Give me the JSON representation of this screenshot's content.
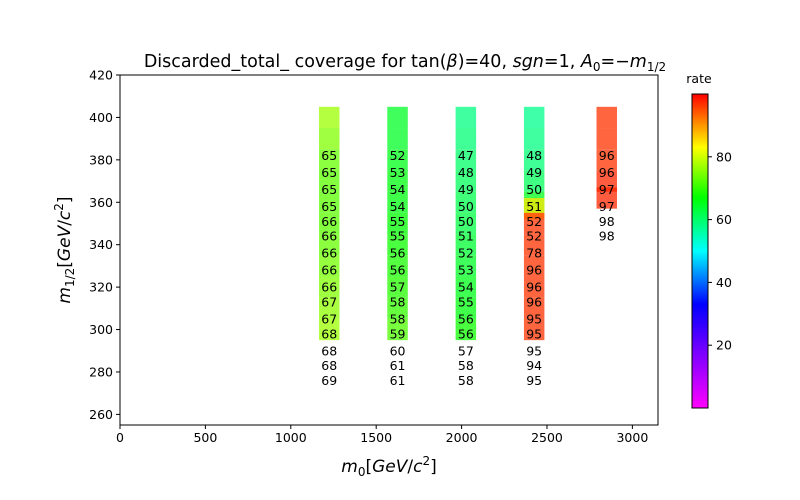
{
  "chart_data": {
    "type": "heatmap",
    "title": "Discarded_total_ coverage for tan(β)=40, sgn=1, A₀=−m₁/₂",
    "title_parts": {
      "a": "Discarded_total_ coverage for tan(",
      "beta": "β",
      "b": ")=40, ",
      "sgn": "sgn",
      "c": "=1, ",
      "A": "A",
      "A_sub": "0",
      "d": "=−",
      "m": "m",
      "m_sub": "1/2"
    },
    "xlabel": "m0[GeV/c2]",
    "xlabel_parts": {
      "m": "m",
      "sub": "0",
      "open": "[",
      "unit": "GeV",
      "slash": "/",
      "c": "c",
      "sup": "2",
      "close": "]"
    },
    "ylabel": "m1/2[GeV/c2]",
    "ylabel_parts": {
      "m": "m",
      "sub": "1/2",
      "open": "[",
      "unit": "GeV",
      "slash": "/",
      "c": "c",
      "sup": "2",
      "close": "]"
    },
    "xlim": [
      0,
      3150
    ],
    "ylim": [
      255,
      420
    ],
    "x_ticks": [
      0,
      500,
      1000,
      1500,
      2000,
      2500,
      3000
    ],
    "y_ticks": [
      260,
      280,
      300,
      320,
      340,
      360,
      380,
      400,
      420
    ],
    "cell_width": 120,
    "cell_height": 10,
    "colorbar": {
      "label": "rate",
      "range": [
        0,
        100
      ],
      "ticks": [
        20,
        40,
        60,
        80
      ]
    },
    "columns": [
      {
        "x": 1225,
        "cells": [
          {
            "y": 400,
            "v": 72
          },
          {
            "y": 390,
            "v": 70
          },
          {
            "y": 380,
            "v": 68
          },
          {
            "y": 370,
            "v": 67
          },
          {
            "y": 360,
            "v": 67
          },
          {
            "y": 350,
            "v": 67
          },
          {
            "y": 340,
            "v": 68
          },
          {
            "y": 330,
            "v": 69
          },
          {
            "y": 320,
            "v": 70
          },
          {
            "y": 310,
            "v": 71
          },
          {
            "y": 300,
            "v": 72
          }
        ],
        "labels": [
          {
            "y": 382,
            "t": "65"
          },
          {
            "y": 374,
            "t": "65"
          },
          {
            "y": 366,
            "t": "65"
          },
          {
            "y": 358,
            "t": "65"
          },
          {
            "y": 351,
            "t": "66"
          },
          {
            "y": 344,
            "t": "66"
          },
          {
            "y": 336,
            "t": "66"
          },
          {
            "y": 328,
            "t": "66"
          },
          {
            "y": 320,
            "t": "66"
          },
          {
            "y": 313,
            "t": "67"
          },
          {
            "y": 305,
            "t": "67"
          },
          {
            "y": 298,
            "t": "68"
          },
          {
            "y": 290,
            "t": "68"
          },
          {
            "y": 283,
            "t": "68"
          },
          {
            "y": 276,
            "t": "69"
          }
        ]
      },
      {
        "x": 1625,
        "cells": [
          {
            "y": 400,
            "v": 57
          },
          {
            "y": 390,
            "v": 57
          },
          {
            "y": 380,
            "v": 58
          },
          {
            "y": 370,
            "v": 59
          },
          {
            "y": 360,
            "v": 59
          },
          {
            "y": 350,
            "v": 60
          },
          {
            "y": 340,
            "v": 61
          },
          {
            "y": 330,
            "v": 62
          },
          {
            "y": 320,
            "v": 63
          },
          {
            "y": 310,
            "v": 64
          },
          {
            "y": 300,
            "v": 66
          }
        ],
        "labels": [
          {
            "y": 382,
            "t": "52"
          },
          {
            "y": 374,
            "t": "53"
          },
          {
            "y": 366,
            "t": "54"
          },
          {
            "y": 358,
            "t": "54"
          },
          {
            "y": 351,
            "t": "55"
          },
          {
            "y": 344,
            "t": "55"
          },
          {
            "y": 336,
            "t": "56"
          },
          {
            "y": 328,
            "t": "56"
          },
          {
            "y": 320,
            "t": "57"
          },
          {
            "y": 313,
            "t": "58"
          },
          {
            "y": 305,
            "t": "58"
          },
          {
            "y": 298,
            "t": "59"
          },
          {
            "y": 290,
            "t": "60"
          },
          {
            "y": 283,
            "t": "61"
          },
          {
            "y": 276,
            "t": "61"
          }
        ]
      },
      {
        "x": 2025,
        "cells": [
          {
            "y": 400,
            "v": 50
          },
          {
            "y": 390,
            "v": 51
          },
          {
            "y": 380,
            "v": 52
          },
          {
            "y": 370,
            "v": 53
          },
          {
            "y": 360,
            "v": 54
          },
          {
            "y": 350,
            "v": 55
          },
          {
            "y": 340,
            "v": 56
          },
          {
            "y": 330,
            "v": 57
          },
          {
            "y": 320,
            "v": 58
          },
          {
            "y": 310,
            "v": 59
          },
          {
            "y": 300,
            "v": 61
          }
        ],
        "labels": [
          {
            "y": 382,
            "t": "47"
          },
          {
            "y": 374,
            "t": "48"
          },
          {
            "y": 366,
            "t": "49"
          },
          {
            "y": 358,
            "t": "50"
          },
          {
            "y": 351,
            "t": "50"
          },
          {
            "y": 344,
            "t": "51"
          },
          {
            "y": 336,
            "t": "52"
          },
          {
            "y": 328,
            "t": "53"
          },
          {
            "y": 320,
            "t": "54"
          },
          {
            "y": 313,
            "t": "55"
          },
          {
            "y": 305,
            "t": "56"
          },
          {
            "y": 298,
            "t": "56"
          },
          {
            "y": 290,
            "t": "57"
          },
          {
            "y": 283,
            "t": "58"
          },
          {
            "y": 276,
            "t": "58"
          }
        ]
      },
      {
        "x": 2425,
        "cells": [
          {
            "y": 400,
            "v": 49
          },
          {
            "y": 390,
            "v": 50
          },
          {
            "y": 380,
            "v": 51
          },
          {
            "y": 370,
            "v": 53
          },
          {
            "y": 360,
            "v": 58
          },
          {
            "y": 357,
            "v": 82
          },
          {
            "y": 350,
            "v": 96
          },
          {
            "y": 340,
            "v": 96
          },
          {
            "y": 330,
            "v": 96
          },
          {
            "y": 320,
            "v": 96
          },
          {
            "y": 310,
            "v": 96
          },
          {
            "y": 300,
            "v": 96
          }
        ],
        "labels": [
          {
            "y": 382,
            "t": "48"
          },
          {
            "y": 374,
            "t": "49"
          },
          {
            "y": 366,
            "t": "50"
          },
          {
            "y": 358,
            "t": "51"
          },
          {
            "y": 351,
            "t": "52"
          },
          {
            "y": 344,
            "t": "52"
          },
          {
            "y": 336,
            "t": "78"
          },
          {
            "y": 328,
            "t": "96"
          },
          {
            "y": 320,
            "t": "96"
          },
          {
            "y": 313,
            "t": "96"
          },
          {
            "y": 305,
            "t": "95"
          },
          {
            "y": 298,
            "t": "95"
          },
          {
            "y": 290,
            "t": "95"
          },
          {
            "y": 283,
            "t": "94"
          },
          {
            "y": 276,
            "t": "95"
          }
        ]
      },
      {
        "x": 2850,
        "cells": [
          {
            "y": 400,
            "v": 96
          },
          {
            "y": 390,
            "v": 96
          },
          {
            "y": 380,
            "v": 96
          },
          {
            "y": 370,
            "v": 97
          },
          {
            "y": 362,
            "v": 97
          }
        ],
        "labels": [
          {
            "y": 382,
            "t": "96"
          },
          {
            "y": 374,
            "t": "96"
          },
          {
            "y": 366,
            "t": "97"
          },
          {
            "y": 358,
            "t": "97"
          },
          {
            "y": 351,
            "t": "98"
          },
          {
            "y": 344,
            "t": "98"
          }
        ]
      }
    ]
  }
}
